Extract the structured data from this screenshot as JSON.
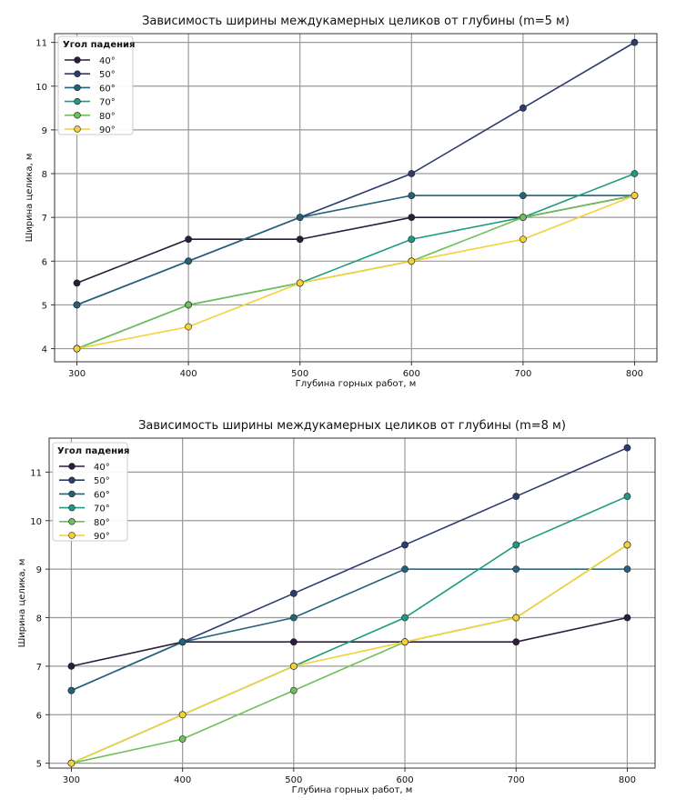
{
  "chart_data": [
    {
      "type": "line",
      "title": "Зависимость ширины междукамерных целиков от глубины (m=5 м)",
      "xlabel": "Глубина горных работ, м",
      "ylabel": "Ширина целика, м",
      "x": [
        300,
        400,
        500,
        600,
        700,
        800
      ],
      "xticks": [
        "300",
        "400",
        "500",
        "600",
        "700",
        "800"
      ],
      "yticks": [
        "4",
        "5",
        "6",
        "7",
        "8",
        "9",
        "10",
        "11"
      ],
      "xlim": [
        280,
        820
      ],
      "ylim": [
        3.7,
        11.2
      ],
      "grid": true,
      "legend": {
        "title": "Угол падения",
        "position": "top-left"
      },
      "series": [
        {
          "name": "40°",
          "color": "#2b1d3b",
          "values": [
            5.5,
            6.5,
            6.5,
            7.0,
            7.0,
            7.5
          ]
        },
        {
          "name": "50°",
          "color": "#2e3b6e",
          "values": [
            5.0,
            6.0,
            7.0,
            8.0,
            9.5,
            11.0
          ]
        },
        {
          "name": "60°",
          "color": "#23627a",
          "values": [
            5.0,
            6.0,
            7.0,
            7.5,
            7.5,
            7.5
          ]
        },
        {
          "name": "70°",
          "color": "#1f9a80",
          "values": [
            4.0,
            5.0,
            5.5,
            6.5,
            7.0,
            8.0
          ]
        },
        {
          "name": "80°",
          "color": "#6fbf5a",
          "values": [
            4.0,
            5.0,
            5.5,
            6.0,
            7.0,
            7.5
          ]
        },
        {
          "name": "90°",
          "color": "#f2d13a",
          "values": [
            4.0,
            4.5,
            5.5,
            6.0,
            6.5,
            7.5
          ]
        }
      ]
    },
    {
      "type": "line",
      "title": "Зависимость ширины междукамерных целиков от глубины (m=8 м)",
      "xlabel": "Глубина горных работ, м",
      "ylabel": "Ширина целика, м",
      "x": [
        300,
        400,
        500,
        600,
        700,
        800
      ],
      "xticks": [
        "300",
        "400",
        "500",
        "600",
        "700",
        "800"
      ],
      "yticks": [
        "5",
        "6",
        "7",
        "8",
        "9",
        "10",
        "11"
      ],
      "xlim": [
        280,
        825
      ],
      "ylim": [
        4.9,
        11.7
      ],
      "grid": true,
      "legend": {
        "title": "Угол падения",
        "position": "top-left"
      },
      "series": [
        {
          "name": "40°",
          "color": "#2b1d3b",
          "values": [
            7.0,
            7.5,
            7.5,
            7.5,
            7.5,
            8.0
          ]
        },
        {
          "name": "50°",
          "color": "#2e3b6e",
          "values": [
            6.5,
            7.5,
            8.5,
            9.5,
            10.5,
            11.5
          ]
        },
        {
          "name": "60°",
          "color": "#23627a",
          "values": [
            6.5,
            7.5,
            8.0,
            9.0,
            9.0,
            9.0
          ]
        },
        {
          "name": "70°",
          "color": "#1f9a80",
          "values": [
            5.0,
            6.0,
            7.0,
            8.0,
            9.5,
            10.5
          ]
        },
        {
          "name": "80°",
          "color": "#6fbf5a",
          "values": [
            5.0,
            5.5,
            6.5,
            7.5,
            8.0,
            9.5
          ]
        },
        {
          "name": "90°",
          "color": "#f2d13a",
          "values": [
            5.0,
            6.0,
            7.0,
            7.5,
            8.0,
            9.5
          ]
        }
      ]
    }
  ]
}
